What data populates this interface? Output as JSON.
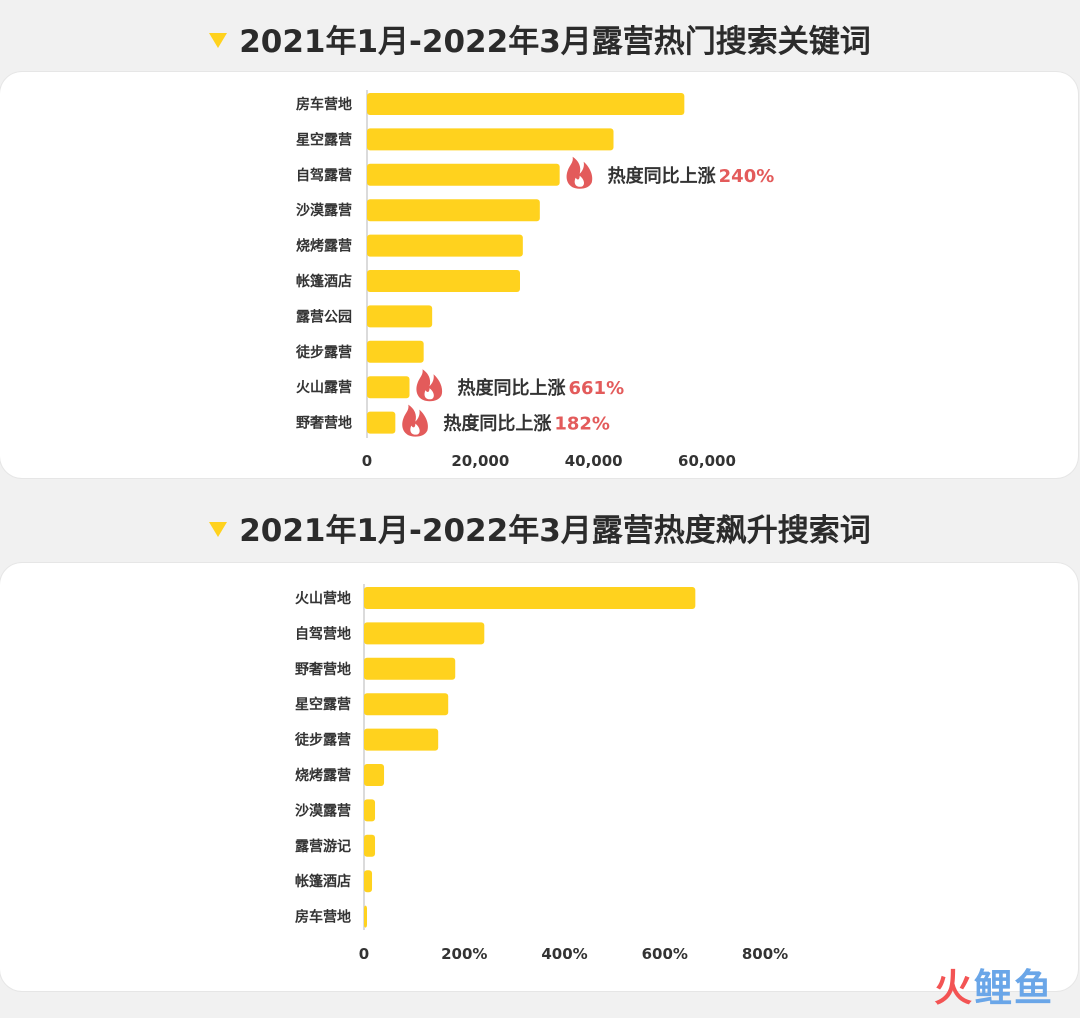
{
  "colors": {
    "bar": "#ffd21e",
    "accent": "#e35b5b",
    "text": "#2b2b2b",
    "axis": "#cfcfcf",
    "flame": "flame-icon"
  },
  "chart_data": [
    {
      "type": "bar",
      "orientation": "horizontal",
      "title": "2021年1月-2022年3月露营热门搜索关键词",
      "categories": [
        "房车营地",
        "星空露营",
        "自驾露营",
        "沙漠露营",
        "烧烤露营",
        "帐篷酒店",
        "露营公园",
        "徒步露营",
        "火山露营",
        "野奢营地"
      ],
      "values": [
        56000,
        43500,
        34000,
        30500,
        27500,
        27000,
        11500,
        10000,
        7500,
        5000
      ],
      "ticks": [
        "0",
        "20,000",
        "40,000",
        "60,000"
      ],
      "xlim": [
        0,
        60000
      ],
      "grid": false,
      "annotations": [
        {
          "category": "自驾露营",
          "text": "热度同比上涨",
          "value_text": "240%"
        },
        {
          "category": "火山露营",
          "text": "热度同比上涨",
          "value_text": "661%"
        },
        {
          "category": "野奢营地",
          "text": "热度同比上涨",
          "value_text": "182%"
        }
      ]
    },
    {
      "type": "bar",
      "orientation": "horizontal",
      "title": "2021年1月-2022年3月露营热度飙升搜索词",
      "categories": [
        "火山营地",
        "自驾营地",
        "野奢营地",
        "星空露营",
        "徒步露营",
        "烧烤露营",
        "沙漠露营",
        "露营游记",
        "帐篷酒店",
        "房车营地"
      ],
      "values": [
        661,
        240,
        182,
        168,
        148,
        40,
        22,
        22,
        16,
        6
      ],
      "ticks": [
        "0",
        "200%",
        "400%",
        "600%",
        "800%"
      ],
      "xlim": [
        0,
        800
      ],
      "grid": false,
      "annotations": []
    }
  ],
  "watermark": {
    "part1": "火",
    "part2": "鲤鱼"
  }
}
